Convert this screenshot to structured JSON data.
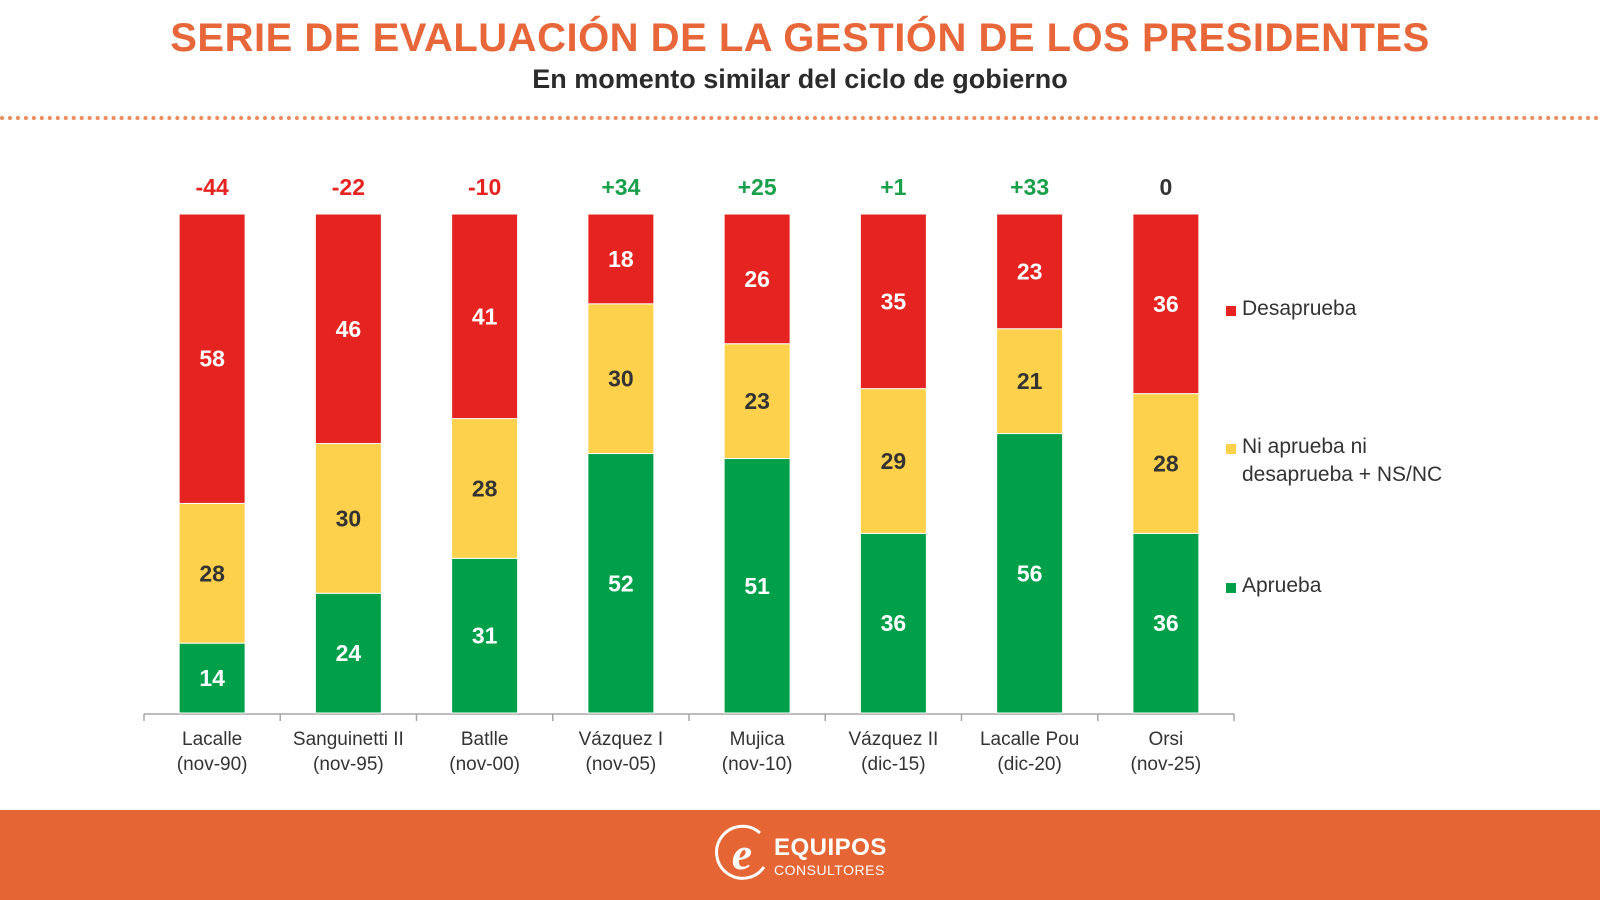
{
  "header": {
    "title": "SERIE DE EVALUACIÓN DE LA GESTIÓN DE LOS PRESIDENTES",
    "subtitle": "En momento similar del ciclo de gobierno"
  },
  "footer": {
    "logo_icon": "e-logo-icon",
    "brand_line1": "EQUIPOS",
    "brand_line2": "CONSULTORES"
  },
  "colors": {
    "title": "#e8673a",
    "desaprueba": "#e52421",
    "neutral": "#fdd14b",
    "aprueba": "#00a04b",
    "net_negative": "#e52421",
    "net_positive": "#1a9f4a",
    "net_zero": "#333333",
    "footer_bg": "#e56535"
  },
  "chart_data": {
    "type": "bar",
    "stacked": true,
    "title": "SERIE DE EVALUACIÓN DE LA GESTIÓN DE LOS PRESIDENTES",
    "subtitle": "En momento similar del ciclo de gobierno",
    "xlabel": "",
    "ylabel": "",
    "ylim": [
      0,
      100
    ],
    "grid": false,
    "legend_position": "right",
    "categories": [
      [
        "Lacalle",
        "(nov-90)"
      ],
      [
        "Sanguinetti II",
        "(nov-95)"
      ],
      [
        "Batlle",
        "(nov-00)"
      ],
      [
        "Vázquez I",
        "(nov-05)"
      ],
      [
        "Mujica",
        "(nov-10)"
      ],
      [
        "Vázquez II",
        "(dic-15)"
      ],
      [
        "Lacalle Pou",
        "(dic-20)"
      ],
      [
        "Orsi",
        "(nov-25)"
      ]
    ],
    "series": [
      {
        "name": "Aprueba",
        "color": "#00a04b",
        "label_color": "#ffffff",
        "values": [
          14,
          24,
          31,
          52,
          51,
          36,
          56,
          36
        ]
      },
      {
        "name": "Ni aprueba ni desaprueba + NS/NC",
        "color": "#fdd14b",
        "label_color": "#333333",
        "values": [
          28,
          30,
          28,
          30,
          23,
          29,
          21,
          28
        ]
      },
      {
        "name": "Desaprueba",
        "color": "#e52421",
        "label_color": "#ffffff",
        "values": [
          58,
          46,
          41,
          18,
          26,
          35,
          23,
          36
        ]
      }
    ],
    "net_labels": [
      "-44",
      "-22",
      "-10",
      "+34",
      "+25",
      "+1",
      "+33",
      "0"
    ],
    "legend": [
      {
        "name": "Desaprueba",
        "color": "#e52421"
      },
      {
        "name": "Ni aprueba ni desaprueba + NS/NC",
        "color": "#fdd14b"
      },
      {
        "name": "Aprueba",
        "color": "#00a04b"
      }
    ]
  }
}
